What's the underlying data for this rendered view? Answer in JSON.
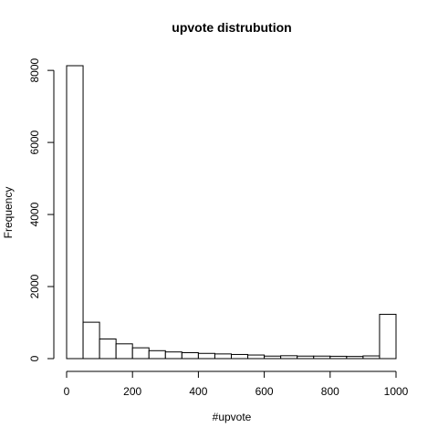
{
  "chart_data": {
    "type": "bar",
    "title": "upvote distrubution",
    "xlabel": "#upvote",
    "ylabel": "Frequency",
    "bin_edges": [
      0,
      50,
      100,
      150,
      200,
      250,
      300,
      350,
      400,
      450,
      500,
      550,
      600,
      650,
      700,
      750,
      800,
      850,
      900,
      950,
      1000
    ],
    "values": [
      8130,
      1010,
      545,
      410,
      300,
      220,
      185,
      165,
      145,
      130,
      115,
      100,
      70,
      80,
      70,
      70,
      65,
      60,
      75,
      1230
    ],
    "xlim": [
      0,
      1000
    ],
    "ylim": [
      0,
      8130
    ],
    "x_ticks": [
      0,
      200,
      400,
      600,
      800,
      1000
    ],
    "y_ticks": [
      0,
      2000,
      4000,
      6000,
      8000
    ],
    "x_tick_labels": [
      "0",
      "200",
      "400",
      "600",
      "800",
      "1000"
    ],
    "y_tick_labels": [
      "0",
      "2000",
      "4000",
      "6000",
      "8000"
    ],
    "grid": false,
    "legend": "none",
    "bar_fill": "#ffffff",
    "bar_stroke": "#000000"
  }
}
